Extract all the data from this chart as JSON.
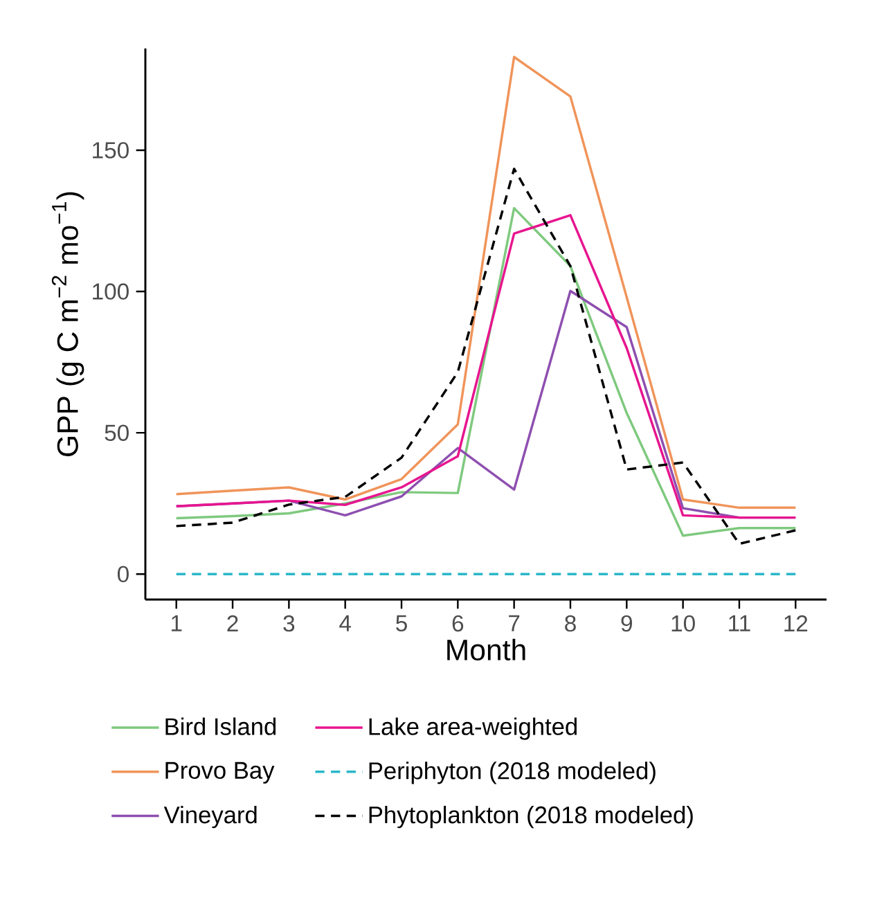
{
  "chart_data": {
    "type": "line",
    "xlabel": "Month",
    "ylabel": "GPP (g C m$^{−2}$ mo$^{−1}$)",
    "x": [
      1,
      2,
      3,
      4,
      5,
      6,
      7,
      8,
      9,
      10,
      11,
      12
    ],
    "xlim": [
      0.45,
      12.55
    ],
    "xticks": [
      1,
      2,
      3,
      4,
      5,
      6,
      7,
      8,
      9,
      10,
      11,
      12
    ],
    "ylim": [
      -9,
      186
    ],
    "yticks": [
      0,
      50,
      100,
      150
    ],
    "grid": false,
    "legend": "bottom",
    "marker": "none",
    "series": [
      {
        "name": "Bird Island",
        "color": "#7fc97f",
        "values": [
          19.8,
          20.5,
          21.5,
          25,
          29,
          28.7,
          129.5,
          109,
          57,
          13.6,
          16.3,
          16.3
        ]
      },
      {
        "name": "Provo Bay",
        "color": "#f0945a",
        "values": [
          28.3,
          29.5,
          30.7,
          26.4,
          33.6,
          53,
          183,
          169,
          98,
          26.4,
          23.5,
          23.5
        ]
      },
      {
        "name": "Vineyard",
        "color": "#8e4fb0",
        "values": [
          24,
          25,
          26,
          20.8,
          27.5,
          44.6,
          29.9,
          100.2,
          87.4,
          23.3,
          20,
          20
        ]
      },
      {
        "name": "Lake area-weighted",
        "color": "#e7158f",
        "values": [
          24,
          25,
          26,
          24.5,
          30.7,
          41.7,
          120.5,
          127,
          80,
          20.8,
          20,
          20
        ]
      },
      {
        "name": "Periphyton (2018 modeled)",
        "color": "#2ab7c8",
        "line_style": "dashed",
        "values": [
          0,
          0,
          0,
          0,
          0,
          0,
          0,
          0,
          0,
          0,
          0,
          0
        ]
      },
      {
        "name": "Phytoplankton (2018 modeled)",
        "color": "#000000",
        "line_style": "dashed",
        "values": [
          17,
          18.2,
          24.6,
          27.3,
          41.2,
          71.5,
          143.4,
          109,
          37,
          39.5,
          10.7,
          15.5
        ]
      }
    ]
  }
}
